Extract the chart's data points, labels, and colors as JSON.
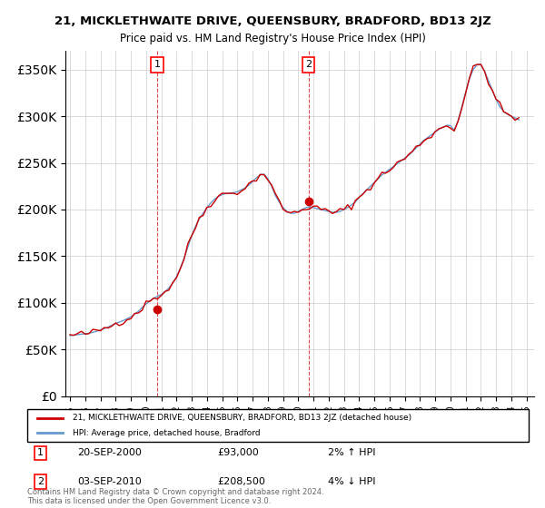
{
  "title": "21, MICKLETHWAITE DRIVE, QUEENSBURY, BRADFORD, BD13 2JZ",
  "subtitle": "Price paid vs. HM Land Registry's House Price Index (HPI)",
  "legend_line1": "21, MICKLETHWAITE DRIVE, QUEENSBURY, BRADFORD, BD13 2JZ (detached house)",
  "legend_line2": "HPI: Average price, detached house, Bradford",
  "annotation1_label": "1",
  "annotation1_date": "20-SEP-2000",
  "annotation1_price": "£93,000",
  "annotation1_hpi": "2% ↑ HPI",
  "annotation2_label": "2",
  "annotation2_date": "03-SEP-2010",
  "annotation2_price": "£208,500",
  "annotation2_hpi": "4% ↓ HPI",
  "footer": "Contains HM Land Registry data © Crown copyright and database right 2024.\nThis data is licensed under the Open Government Licence v3.0.",
  "line_color_red": "#cc0000",
  "line_color_blue": "#6699cc",
  "background_color": "#ffffff",
  "ylim": [
    0,
    370000
  ],
  "yticks": [
    0,
    50000,
    100000,
    150000,
    200000,
    250000,
    300000,
    350000
  ],
  "xlim_start": 1995.0,
  "xlim_end": 2025.5
}
